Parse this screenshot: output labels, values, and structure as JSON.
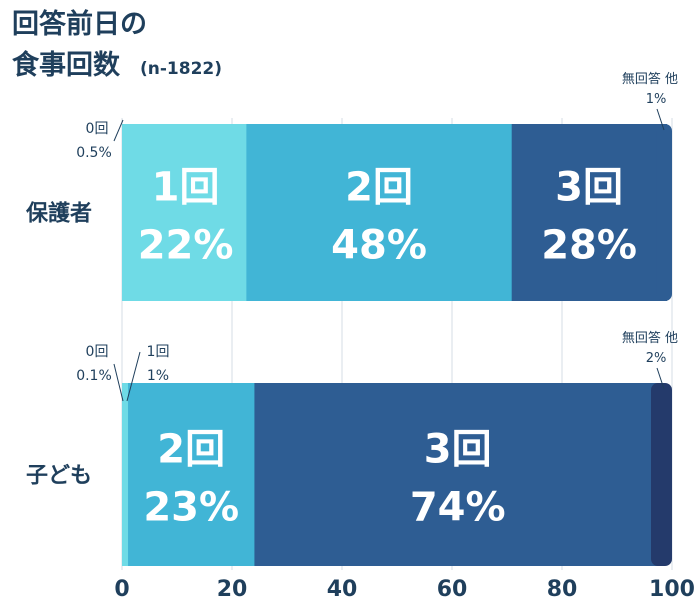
{
  "chart_data": {
    "type": "bar",
    "orientation": "horizontal",
    "stacked": true,
    "title_line1": "回答前日の",
    "title_line2": "食事回数",
    "subtitle": "(n-1822)",
    "xlim": [
      0,
      100
    ],
    "x_ticks": [
      "0",
      "20",
      "40",
      "60",
      "80",
      "100"
    ],
    "grid": true,
    "bars": [
      {
        "category": "保護者",
        "segments": [
          {
            "name": "0回",
            "value": 0.5,
            "value_label": "0.5%",
            "color": "#6fdbe6",
            "inside": false
          },
          {
            "name": "1回",
            "value": 22,
            "value_label": "22%",
            "color": "#6fdbe6",
            "inside": true
          },
          {
            "name": "2回",
            "value": 48,
            "value_label": "48%",
            "color": "#41b5d6",
            "inside": true
          },
          {
            "name": "3回",
            "value": 28,
            "value_label": "28%",
            "color": "#2e5d93",
            "inside": true
          },
          {
            "name": "無回答 他",
            "value": 1,
            "value_label": "1%",
            "color": "#2e5d93",
            "inside": false
          }
        ]
      },
      {
        "category": "子ども",
        "segments": [
          {
            "name": "0回",
            "value": 0.1,
            "value_label": "0.1%",
            "color": "#6fdbe6",
            "inside": false
          },
          {
            "name": "1回",
            "value": 1,
            "value_label": "1%",
            "color": "#6fdbe6",
            "inside": false
          },
          {
            "name": "2回",
            "value": 23,
            "value_label": "23%",
            "color": "#41b5d6",
            "inside": true
          },
          {
            "name": "3回",
            "value": 74,
            "value_label": "74%",
            "color": "#2e5d93",
            "inside": true
          },
          {
            "name": "無回答 他",
            "value": 2,
            "value_label": "2%",
            "color": "#243a6b",
            "inside": false
          }
        ]
      }
    ]
  }
}
